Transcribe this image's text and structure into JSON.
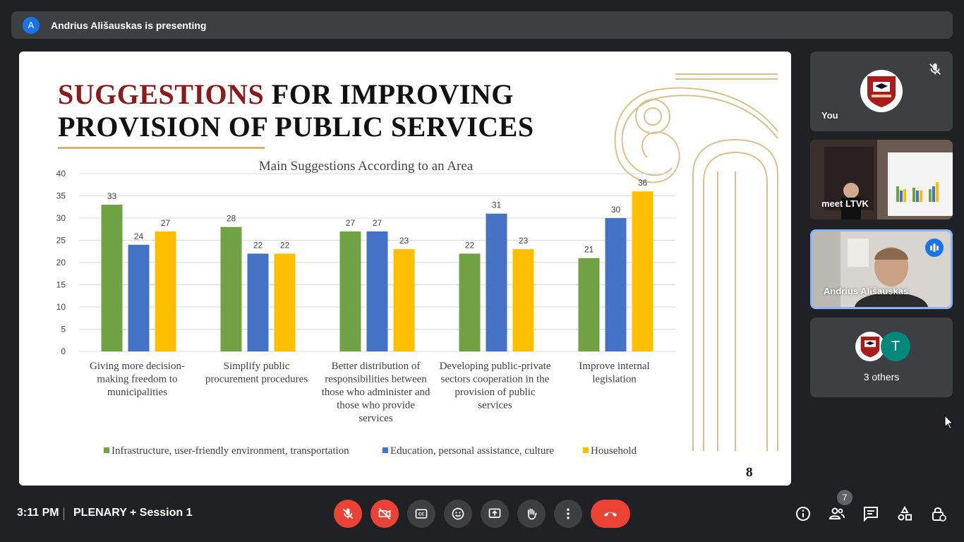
{
  "presenting": {
    "avatar_letter": "A",
    "text": "Andrius Ališauskas is presenting"
  },
  "slide": {
    "title_accent": "SUGGESTIONS",
    "title_rest_line1": " FOR IMPROVING",
    "title_line2": "PROVISION OF PUBLIC SERVICES",
    "page_number": "8"
  },
  "chart_data": {
    "type": "bar",
    "title": "Main Suggestions According to an Area",
    "xlabel": "",
    "ylabel": "",
    "ylim": [
      0,
      40
    ],
    "yticks": [
      0,
      5,
      10,
      15,
      20,
      25,
      30,
      35,
      40
    ],
    "grid": true,
    "legend_position": "bottom",
    "categories": [
      [
        "Giving more decision-",
        "making freedom to",
        "municipalities"
      ],
      [
        "Simplify public",
        "procurement procedures"
      ],
      [
        "Better distribution of",
        "responsibilities between",
        "those who administer and",
        "those who provide",
        "services"
      ],
      [
        "Developing public-private",
        "sectors cooperation in the",
        "provision of public",
        "services"
      ],
      [
        "Improve internal",
        "legislation"
      ]
    ],
    "series": [
      {
        "name": "Infrastructure, user-friendly environment, transportation",
        "color": "#70a244",
        "values": [
          33,
          28,
          27,
          22,
          21
        ]
      },
      {
        "name": "Education, personal assistance, culture",
        "color": "#4472c4",
        "values": [
          24,
          22,
          27,
          31,
          30
        ]
      },
      {
        "name": "Household",
        "color": "#ffbf00",
        "values": [
          27,
          22,
          23,
          23,
          36
        ]
      }
    ]
  },
  "participants": {
    "you": {
      "name": "You",
      "icon": "mic-off-icon"
    },
    "ltvk": {
      "name": "meet LTVK"
    },
    "andrius": {
      "name": "Andrius Ališauskas",
      "icon": "speaking-icon"
    },
    "others": {
      "avatar_letter": "T",
      "label": "3 others"
    }
  },
  "bottom_bar": {
    "time": "3:11 PM",
    "meeting_name": "PLENARY + Session 1",
    "people_count": "7"
  }
}
